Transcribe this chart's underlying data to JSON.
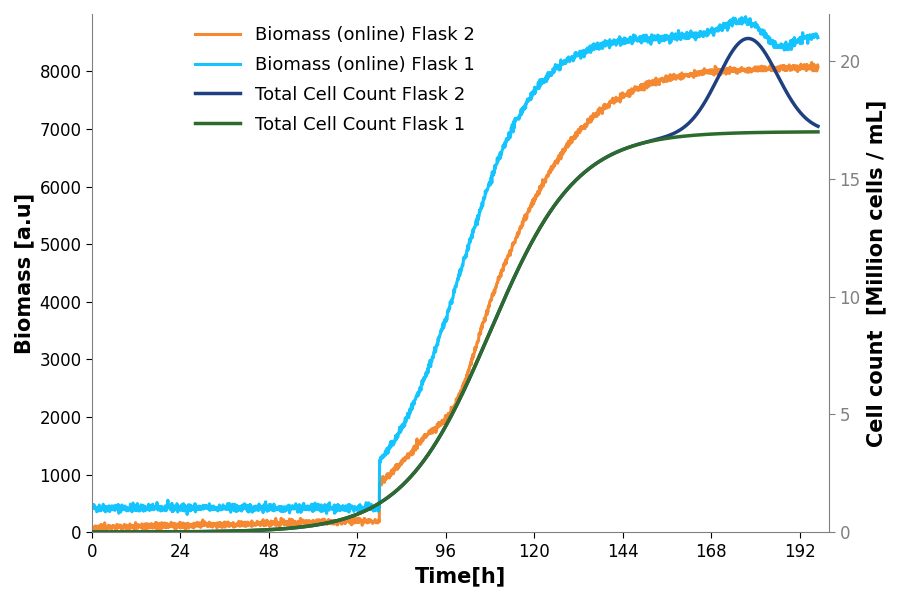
{
  "title": "",
  "xlabel": "Time[h]",
  "ylabel_left": "Biomass [a.u]",
  "ylabel_right": "Cell count  [Million cells / mL]",
  "xlim": [
    0,
    200
  ],
  "ylim_left": [
    0,
    9000
  ],
  "ylim_right": [
    0,
    22
  ],
  "xticks": [
    0,
    24,
    48,
    72,
    96,
    120,
    144,
    168,
    192
  ],
  "yticks_left": [
    0,
    1000,
    2000,
    3000,
    4000,
    5000,
    6000,
    7000,
    8000
  ],
  "yticks_right": [
    0,
    5,
    10,
    15,
    20
  ],
  "colors": {
    "biomass_flask2": "#F47F20",
    "biomass_flask1": "#00BFFF",
    "cell_count_flask2": "#1F4080",
    "cell_count_flask1": "#2D6A2D"
  },
  "linewidths": {
    "biomass": 2.2,
    "cell_count": 2.5
  },
  "legend_labels": [
    "Biomass (online) Flask 2",
    "Biomass (online) Flask 1",
    "Total Cell Count Flask 2",
    "Total Cell Count Flask 1"
  ],
  "background_color": "#FFFFFF",
  "legend_fontsize": 13,
  "axis_label_fontsize": 15,
  "tick_fontsize": 12
}
